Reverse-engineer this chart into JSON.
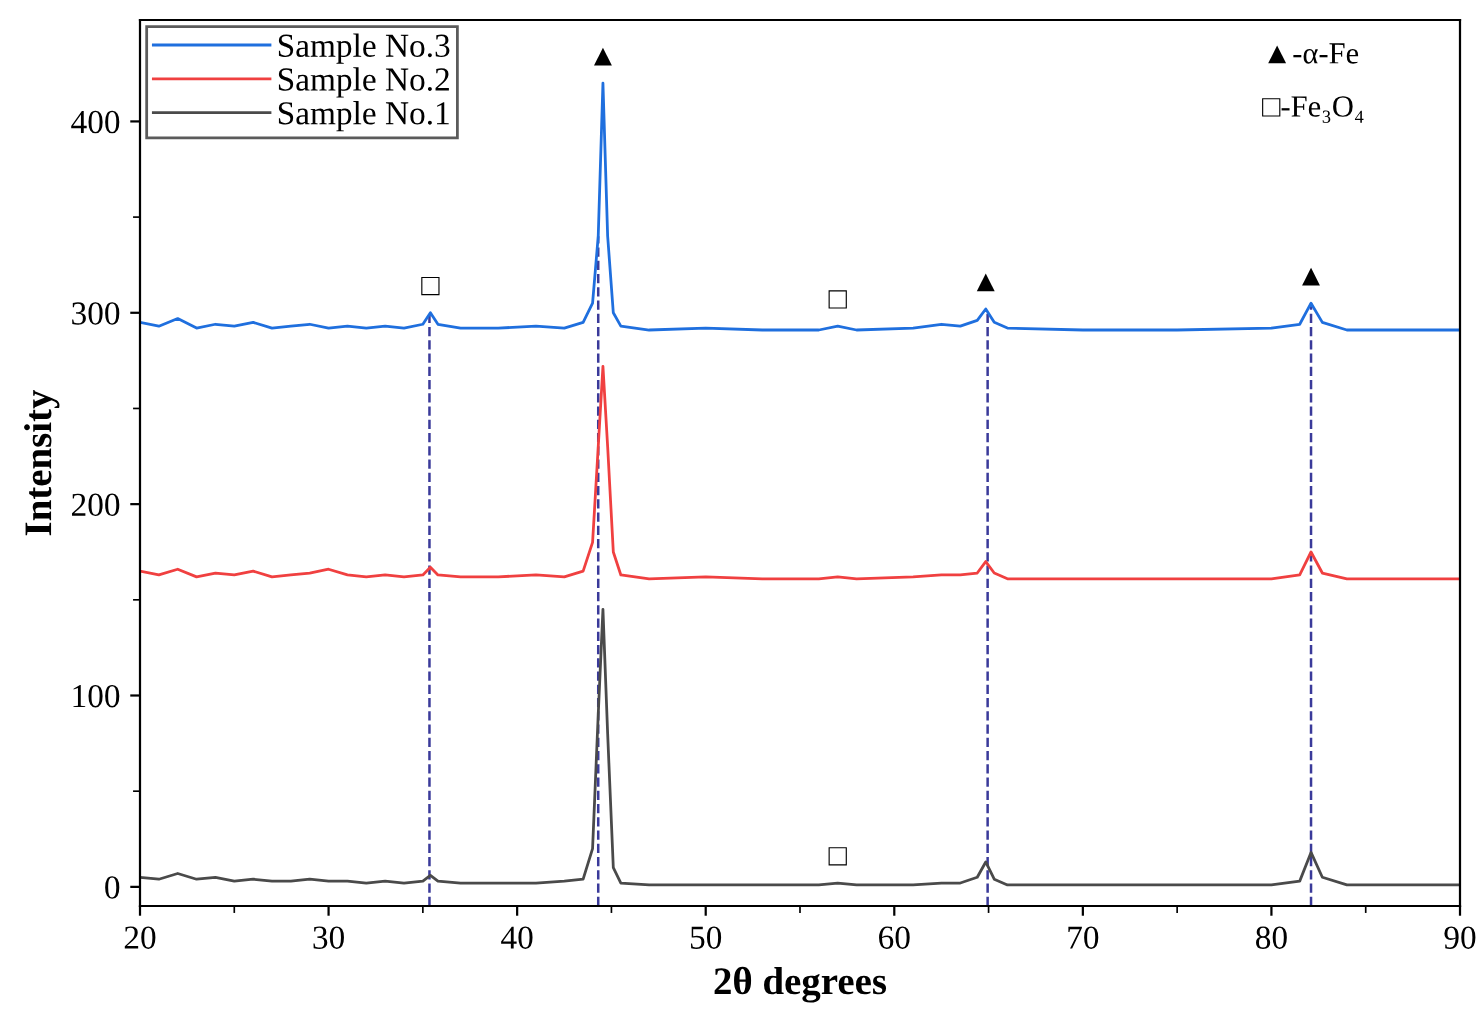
{
  "chart_data": {
    "type": "line",
    "xlabel": "2θ degrees",
    "ylabel": "Intensity",
    "x": [
      20,
      21,
      22,
      23,
      24,
      25,
      26,
      27,
      28,
      29,
      30,
      31,
      32,
      33,
      34,
      35,
      35.4,
      35.8,
      37,
      39,
      41,
      42.5,
      43.5,
      44.0,
      44.3,
      44.55,
      44.8,
      45.1,
      45.5,
      47,
      50,
      53,
      56,
      57,
      58,
      61,
      62.5,
      63.5,
      64.4,
      64.85,
      65.3,
      66,
      70,
      75,
      80,
      81.5,
      82.1,
      82.7,
      84,
      87,
      90
    ],
    "series": [
      {
        "name": "Sample No.3",
        "color": "#1f6fde",
        "values": [
          295,
          293,
          297,
          292,
          294,
          293,
          295,
          292,
          293,
          294,
          292,
          293,
          292,
          293,
          292,
          294,
          300,
          294,
          292,
          292,
          293,
          292,
          295,
          305,
          340,
          420,
          340,
          300,
          293,
          291,
          292,
          291,
          291,
          293,
          291,
          292,
          294,
          293,
          296,
          302,
          295,
          292,
          291,
          291,
          292,
          294,
          305,
          295,
          291,
          291,
          291
        ]
      },
      {
        "name": "Sample No.2",
        "color": "#f04040",
        "values": [
          165,
          163,
          166,
          162,
          164,
          163,
          165,
          162,
          163,
          164,
          166,
          163,
          162,
          163,
          162,
          163,
          167,
          163,
          162,
          162,
          163,
          162,
          165,
          180,
          230,
          272,
          230,
          175,
          163,
          161,
          162,
          161,
          161,
          162,
          161,
          162,
          163,
          163,
          164,
          170,
          164,
          161,
          161,
          161,
          161,
          163,
          175,
          164,
          161,
          161,
          161
        ]
      },
      {
        "name": "Sample No.1",
        "color": "#4a4a4a",
        "values": [
          5,
          4,
          7,
          4,
          5,
          3,
          4,
          3,
          3,
          4,
          3,
          3,
          2,
          3,
          2,
          3,
          6,
          3,
          2,
          2,
          2,
          3,
          4,
          20,
          90,
          145,
          80,
          10,
          2,
          1,
          1,
          1,
          1,
          2,
          1,
          1,
          2,
          2,
          5,
          13,
          4,
          1,
          1,
          1,
          1,
          3,
          18,
          5,
          1,
          1,
          1
        ]
      }
    ],
    "xlim": [
      20,
      90
    ],
    "xticks": [
      20,
      30,
      40,
      50,
      60,
      70,
      80,
      90
    ],
    "ylim": [
      -10,
      453
    ],
    "yticks": [
      0,
      100,
      200,
      300,
      400
    ],
    "grid": false,
    "legend": "top left",
    "marker": "none",
    "line_style": "solid",
    "ref_lines": [
      {
        "axis": "x",
        "value": 35.35,
        "color": "#3a3a9a",
        "line_style": "dashed"
      },
      {
        "axis": "x",
        "value": 44.3,
        "color": "#3a3a9a",
        "line_style": "dashed"
      },
      {
        "axis": "x",
        "value": 64.95,
        "color": "#3a3a9a",
        "line_style": "dashed"
      },
      {
        "axis": "x",
        "value": 82.1,
        "color": "#3a3a9a",
        "line_style": "dashed"
      }
    ],
    "annotations": [
      {
        "text": "▲",
        "x": 44.55,
        "y": 420
      },
      {
        "text": "▲",
        "x": 64.85,
        "y": 302
      },
      {
        "text": "▲",
        "x": 82.1,
        "y": 305
      },
      {
        "text": "□",
        "x": 35.4,
        "y": 300
      },
      {
        "text": "□",
        "x": 57,
        "y": 293
      },
      {
        "text": "□",
        "x": 57,
        "y": 2
      },
      "▲-α-Fe",
      "□-Fe₃O₄"
    ]
  }
}
